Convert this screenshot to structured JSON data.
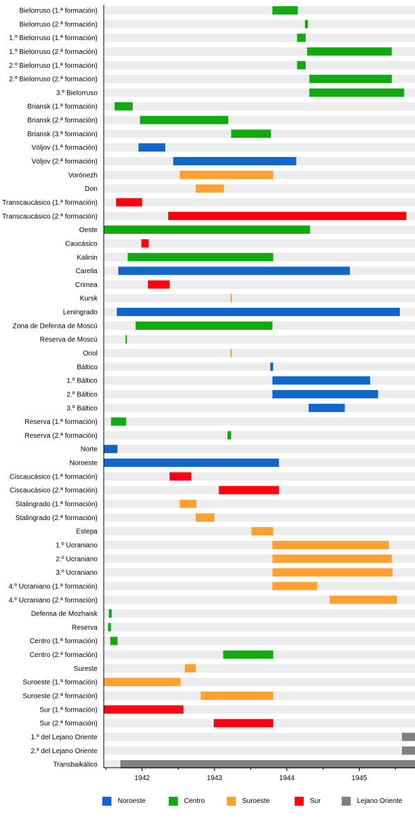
{
  "chart_data": {
    "type": "gantt",
    "title": "",
    "xlim": [
      1941.47,
      1945.77
    ],
    "xticks": [
      "1942",
      "1943",
      "1944",
      "1945"
    ],
    "tick_values": [
      1942,
      1943,
      1944,
      1945
    ],
    "minor_ticks": [
      1941.5,
      1942.5,
      1943.5,
      1944.5,
      1945.5
    ],
    "legend": [
      {
        "name": "Noroeste",
        "color": "#1166cc"
      },
      {
        "name": "Centro",
        "color": "#11aa11"
      },
      {
        "name": "Suroeste",
        "color": "#ffa030"
      },
      {
        "name": "Sur",
        "color": "#ff0011"
      },
      {
        "name": "Lejano Oriente",
        "color": "#808080"
      }
    ],
    "rows": [
      {
        "label": "Bielorruso (1.ª formación)",
        "group": 1,
        "start": 1943.8,
        "end": 1944.15
      },
      {
        "label": "Bielorruso (2.ª formación)",
        "group": 1,
        "start": 1944.25,
        "end": 1944.29
      },
      {
        "label": "1.º Bielorruso (1.ª formación)",
        "group": 1,
        "start": 1944.14,
        "end": 1944.26
      },
      {
        "label": "1.º Bielorruso (2.ª formación)",
        "group": 1,
        "start": 1944.28,
        "end": 1945.45
      },
      {
        "label": "2.º Bielorruso (1.ª formación)",
        "group": 1,
        "start": 1944.14,
        "end": 1944.26
      },
      {
        "label": "2.º Bielorruso (2.ª formación)",
        "group": 1,
        "start": 1944.31,
        "end": 1945.45
      },
      {
        "label": "3.º Bielorruso",
        "group": 1,
        "start": 1944.31,
        "end": 1945.62
      },
      {
        "label": "Briansk (1.ª formación)",
        "group": 1,
        "start": 1941.62,
        "end": 1941.87
      },
      {
        "label": "Briansk (2.ª formación)",
        "group": 1,
        "start": 1941.97,
        "end": 1943.19
      },
      {
        "label": "Briansk (3.ª formación)",
        "group": 1,
        "start": 1943.23,
        "end": 1943.78
      },
      {
        "label": "Vóljov (1.ª formación)",
        "group": 0,
        "start": 1941.95,
        "end": 1942.32
      },
      {
        "label": "Vóljov (2.ª formación)",
        "group": 0,
        "start": 1942.43,
        "end": 1944.13
      },
      {
        "label": "Vorónezh",
        "group": 2,
        "start": 1942.52,
        "end": 1943.81
      },
      {
        "label": "Don",
        "group": 2,
        "start": 1942.74,
        "end": 1943.13
      },
      {
        "label": "Transcaucásico (1.ª formación)",
        "group": 3,
        "start": 1941.64,
        "end": 1942.0
      },
      {
        "label": "Transcaucásico (2.ª formación)",
        "group": 3,
        "start": 1942.36,
        "end": 1945.65
      },
      {
        "label": "Oeste",
        "group": 1,
        "start": 1941.47,
        "end": 1944.32
      },
      {
        "label": "Caucásico",
        "group": 3,
        "start": 1941.99,
        "end": 1942.09
      },
      {
        "label": "Kalinin",
        "group": 1,
        "start": 1941.8,
        "end": 1943.81
      },
      {
        "label": "Carelia",
        "group": 0,
        "start": 1941.67,
        "end": 1944.87
      },
      {
        "label": "Crimea",
        "group": 3,
        "start": 1942.08,
        "end": 1942.38
      },
      {
        "label": "Kursk",
        "group": 2,
        "start": 1943.22,
        "end": 1943.24
      },
      {
        "label": "Leningrado",
        "group": 0,
        "start": 1941.65,
        "end": 1945.56
      },
      {
        "label": "Zona de Defensa de Moscú",
        "group": 1,
        "start": 1941.91,
        "end": 1943.8
      },
      {
        "label": "Reserva de Moscú",
        "group": 1,
        "start": 1941.77,
        "end": 1941.79
      },
      {
        "label": "Oriol",
        "group": 2,
        "start": 1943.22,
        "end": 1943.24
      },
      {
        "label": "Báltico",
        "group": 0,
        "start": 1943.77,
        "end": 1943.81
      },
      {
        "label": "1.º Báltico",
        "group": 0,
        "start": 1943.8,
        "end": 1945.15
      },
      {
        "label": "2.º Báltico",
        "group": 0,
        "start": 1943.8,
        "end": 1945.26
      },
      {
        "label": "3.º Báltico",
        "group": 0,
        "start": 1944.3,
        "end": 1944.8
      },
      {
        "label": "Reserva (1.ª formación)",
        "group": 1,
        "start": 1941.57,
        "end": 1941.78
      },
      {
        "label": "Reserva (2.ª formación)",
        "group": 1,
        "start": 1943.18,
        "end": 1943.23
      },
      {
        "label": "Norte",
        "group": 0,
        "start": 1941.47,
        "end": 1941.66
      },
      {
        "label": "Noroeste",
        "group": 0,
        "start": 1941.47,
        "end": 1943.89
      },
      {
        "label": "Ciscaucásico (1.ª formación)",
        "group": 3,
        "start": 1942.38,
        "end": 1942.68
      },
      {
        "label": "Ciscaucásico (2.ª formación)",
        "group": 3,
        "start": 1943.06,
        "end": 1943.89
      },
      {
        "label": "Stalingrado (1.ª formación)",
        "group": 2,
        "start": 1942.52,
        "end": 1942.75
      },
      {
        "label": "Stalingrado (2.ª formación)",
        "group": 2,
        "start": 1942.74,
        "end": 1943.0
      },
      {
        "label": "Estepa",
        "group": 2,
        "start": 1943.51,
        "end": 1943.81
      },
      {
        "label": "1.º Ucraniano",
        "group": 2,
        "start": 1943.8,
        "end": 1945.41
      },
      {
        "label": "2.º Ucraniano",
        "group": 2,
        "start": 1943.8,
        "end": 1945.45
      },
      {
        "label": "3.º Ucraniano",
        "group": 2,
        "start": 1943.8,
        "end": 1945.46
      },
      {
        "label": "4.º Ucraniano (1.ª formación)",
        "group": 2,
        "start": 1943.8,
        "end": 1944.42
      },
      {
        "label": "4.º Ucraniano (2.ª formación)",
        "group": 2,
        "start": 1944.59,
        "end": 1945.52
      },
      {
        "label": "Defensa de Mozhaisk",
        "group": 1,
        "start": 1941.54,
        "end": 1941.58
      },
      {
        "label": "Reserva",
        "group": 1,
        "start": 1941.53,
        "end": 1941.57
      },
      {
        "label": "Centro (1.ª formación)",
        "group": 1,
        "start": 1941.56,
        "end": 1941.66
      },
      {
        "label": "Centro (2.ª formación)",
        "group": 1,
        "start": 1943.12,
        "end": 1943.81
      },
      {
        "label": "Sureste",
        "group": 2,
        "start": 1942.59,
        "end": 1942.74
      },
      {
        "label": "Suroeste (1.ª formación)",
        "group": 2,
        "start": 1941.47,
        "end": 1942.53
      },
      {
        "label": "Suroeste (2.ª formación)",
        "group": 2,
        "start": 1942.81,
        "end": 1943.81
      },
      {
        "label": "Sur (1.ª formación)",
        "group": 3,
        "start": 1941.47,
        "end": 1942.57
      },
      {
        "label": "Sur (2.ª formación)",
        "group": 3,
        "start": 1942.99,
        "end": 1943.81
      },
      {
        "label": "1.º del Lejano Oriente",
        "group": 4,
        "start": 1945.59,
        "end": 1945.77
      },
      {
        "label": "2.º del Lejano Oriente",
        "group": 4,
        "start": 1945.59,
        "end": 1945.77
      },
      {
        "label": "Transbaikálico",
        "group": 4,
        "start": 1941.7,
        "end": 1945.77
      }
    ]
  }
}
